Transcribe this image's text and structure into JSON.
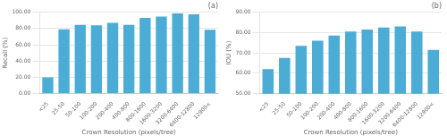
{
  "chart_data": [
    {
      "type": "bar",
      "title": "(a)",
      "categories": [
        "<25",
        "25-50",
        "50-100",
        "100-200",
        "200-400",
        "400-800",
        "800-1600",
        "1600-3200",
        "3200-6400",
        "6400-12800",
        "12800<"
      ],
      "values": [
        20.0,
        79.0,
        84.5,
        84.0,
        87.0,
        84.5,
        93.0,
        94.5,
        98.5,
        97.5,
        78.5
      ],
      "color": "#4BACD6",
      "xlabel": "Crown Resolution (pixels/tree)",
      "ylabel": "Recall (%)",
      "ylim": [
        0,
        100
      ],
      "yticks": [
        {
          "value": 0,
          "label": "0.00"
        },
        {
          "value": 20,
          "label": "20.00"
        },
        {
          "value": 40,
          "label": "40.00"
        },
        {
          "value": 60,
          "label": "60.00"
        },
        {
          "value": 80,
          "label": "80.00"
        },
        {
          "value": 100,
          "label": "100.00"
        }
      ],
      "grid": true
    },
    {
      "type": "bar",
      "title": "(b)",
      "categories": [
        "<25",
        "25-50",
        "50-100",
        "100-200",
        "200-400",
        "400-800",
        "800-1600",
        "1600-3200",
        "3200-6400",
        "6400-12800",
        "12800<"
      ],
      "values": [
        62.0,
        67.5,
        73.5,
        76.0,
        78.5,
        80.5,
        81.5,
        82.5,
        83.0,
        80.5,
        71.5
      ],
      "color": "#4BACD6",
      "xlabel": "Crown Resolution (pixels/tree)",
      "ylabel": "IOU (%)",
      "ylim": [
        50,
        90
      ],
      "yticks": [
        {
          "value": 50,
          "label": "50.00"
        },
        {
          "value": 60,
          "label": "60.00"
        },
        {
          "value": 70,
          "label": "70.00"
        },
        {
          "value": 80,
          "label": "80.00"
        },
        {
          "value": 90,
          "label": "90.00"
        }
      ],
      "grid": true
    }
  ]
}
